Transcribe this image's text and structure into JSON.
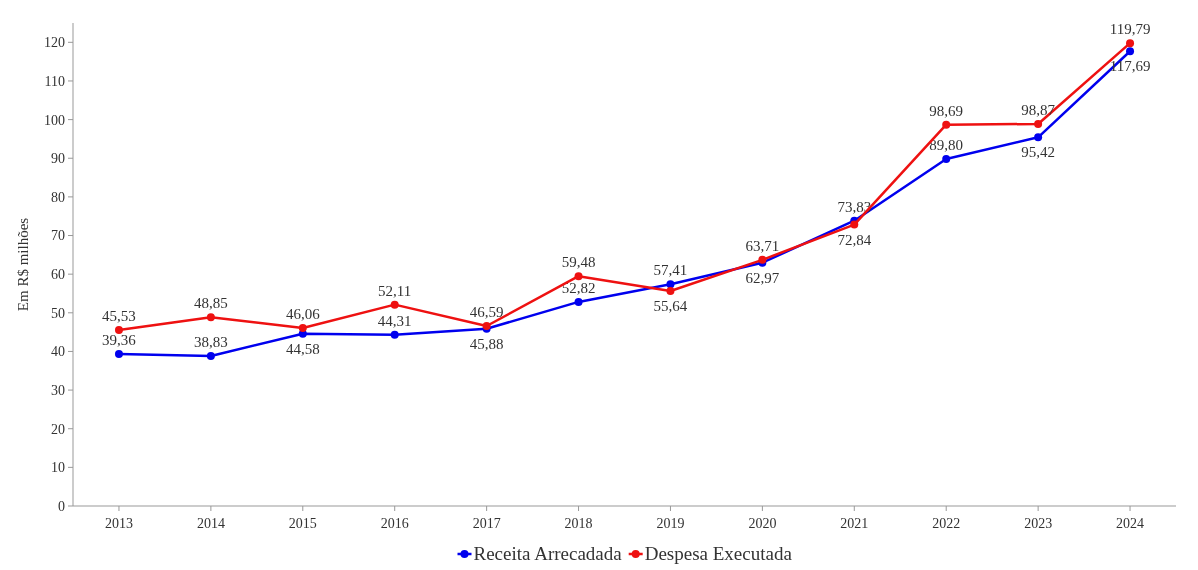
{
  "chart_data": {
    "type": "line",
    "ylabel": "Em R$ milhões",
    "categories": [
      "2013",
      "2014",
      "2015",
      "2016",
      "2017",
      "2018",
      "2019",
      "2020",
      "2021",
      "2022",
      "2023",
      "2024"
    ],
    "series": [
      {
        "name": "Receita Arrecadada",
        "color": "#0000ee",
        "values": [
          39.36,
          38.83,
          44.58,
          44.31,
          45.88,
          52.82,
          57.41,
          62.97,
          73.83,
          89.8,
          95.42,
          117.69
        ],
        "value_labels": [
          "39,36",
          "38,83",
          "44,58",
          "44,31",
          "45,88",
          "52,82",
          "57,41",
          "62,97",
          "73,83",
          "89,80",
          "95,42",
          "117,69"
        ]
      },
      {
        "name": "Despesa Executada",
        "color": "#ee1111",
        "values": [
          45.53,
          48.85,
          46.06,
          52.11,
          46.59,
          59.48,
          55.64,
          63.71,
          72.84,
          98.69,
          98.87,
          119.79
        ],
        "value_labels": [
          "45,53",
          "48,85",
          "46,06",
          "52,11",
          "46,59",
          "59,48",
          "55,64",
          "63,71",
          "72,84",
          "98,69",
          "98,87",
          "119,79"
        ]
      }
    ],
    "ylim": [
      0,
      125
    ],
    "yticks": [
      0,
      10,
      20,
      30,
      40,
      50,
      60,
      70,
      80,
      90,
      100,
      110,
      120
    ],
    "grid": false,
    "legend": "bottom",
    "marker": "circle",
    "line_style": "solid"
  }
}
